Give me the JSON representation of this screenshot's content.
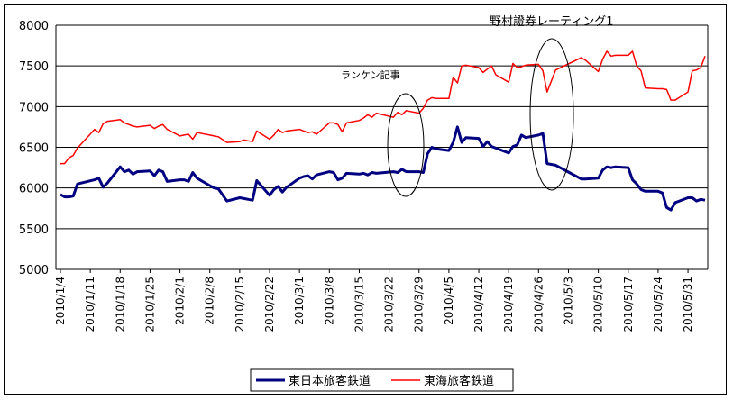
{
  "chart_data": {
    "type": "line",
    "title": "",
    "xlabel": "",
    "ylabel": "",
    "ylim": [
      5000,
      8000
    ],
    "y_ticks": [
      5000,
      5500,
      6000,
      6500,
      7000,
      7500,
      8000
    ],
    "grid": "horizontal",
    "legend_position": "bottom",
    "x_ticks": [
      "2010/1/4",
      "2010/1/11",
      "2010/1/18",
      "2010/1/25",
      "2010/2/1",
      "2010/2/8",
      "2010/2/15",
      "2010/2/22",
      "2010/3/1",
      "2010/3/8",
      "2010/3/15",
      "2010/3/22",
      "2010/3/29",
      "2010/4/5",
      "2010/4/12",
      "2010/4/19",
      "2010/4/26",
      "2010/5/3",
      "2010/5/10",
      "2010/5/17",
      "2010/5/24",
      "2010/5/31"
    ],
    "annotations": [
      {
        "text": "ランケン記事",
        "x": "2010/3/26",
        "y": 7780
      },
      {
        "text": "野村證券レーティング1",
        "x": "2010/4/28",
        "y": 7950
      }
    ],
    "series": [
      {
        "name": "東日本旅客鉄道",
        "color": "#000080",
        "x": [
          "2010/1/4",
          "2010/1/5",
          "2010/1/6",
          "2010/1/7",
          "2010/1/8",
          "2010/1/12",
          "2010/1/13",
          "2010/1/14",
          "2010/1/15",
          "2010/1/18",
          "2010/1/19",
          "2010/1/20",
          "2010/1/21",
          "2010/1/22",
          "2010/1/25",
          "2010/1/26",
          "2010/1/27",
          "2010/1/28",
          "2010/1/29",
          "2010/2/1",
          "2010/2/2",
          "2010/2/3",
          "2010/2/4",
          "2010/2/5",
          "2010/2/8",
          "2010/2/9",
          "2010/2/10",
          "2010/2/12",
          "2010/2/15",
          "2010/2/16",
          "2010/2/17",
          "2010/2/18",
          "2010/2/19",
          "2010/2/22",
          "2010/2/23",
          "2010/2/24",
          "2010/2/25",
          "2010/2/26",
          "2010/3/1",
          "2010/3/2",
          "2010/3/3",
          "2010/3/4",
          "2010/3/5",
          "2010/3/8",
          "2010/3/9",
          "2010/3/10",
          "2010/3/11",
          "2010/3/12",
          "2010/3/15",
          "2010/3/16",
          "2010/3/17",
          "2010/3/18",
          "2010/3/19",
          "2010/3/23",
          "2010/3/24",
          "2010/3/25",
          "2010/3/26",
          "2010/3/29",
          "2010/3/30",
          "2010/3/31",
          "2010/4/1",
          "2010/4/2",
          "2010/4/5",
          "2010/4/6",
          "2010/4/7",
          "2010/4/8",
          "2010/4/9",
          "2010/4/12",
          "2010/4/13",
          "2010/4/14",
          "2010/4/15",
          "2010/4/16",
          "2010/4/19",
          "2010/4/20",
          "2010/4/21",
          "2010/4/22",
          "2010/4/23",
          "2010/4/26",
          "2010/4/27",
          "2010/4/28",
          "2010/4/30",
          "2010/5/6",
          "2010/5/7",
          "2010/5/10",
          "2010/5/11",
          "2010/5/12",
          "2010/5/13",
          "2010/5/14",
          "2010/5/17",
          "2010/5/18",
          "2010/5/19",
          "2010/5/20",
          "2010/5/21",
          "2010/5/24",
          "2010/5/25",
          "2010/5/26",
          "2010/5/27",
          "2010/5/28",
          "2010/5/31",
          "2010/6/1",
          "2010/6/2",
          "2010/6/3",
          "2010/6/4"
        ],
        "values": [
          5920,
          5890,
          5890,
          5900,
          6050,
          6100,
          6120,
          6010,
          6060,
          6260,
          6200,
          6220,
          6170,
          6200,
          6210,
          6150,
          6220,
          6200,
          6080,
          6100,
          6100,
          6080,
          6190,
          6120,
          6030,
          6000,
          5990,
          5840,
          5880,
          5870,
          5860,
          5850,
          6090,
          5910,
          5980,
          6020,
          5950,
          6010,
          6120,
          6140,
          6150,
          6110,
          6160,
          6200,
          6190,
          6100,
          6120,
          6180,
          6170,
          6180,
          6160,
          6190,
          6180,
          6200,
          6190,
          6230,
          6200,
          6200,
          6190,
          6420,
          6500,
          6480,
          6460,
          6560,
          6750,
          6560,
          6620,
          6610,
          6510,
          6570,
          6510,
          6490,
          6430,
          6510,
          6530,
          6650,
          6620,
          6650,
          6670,
          6300,
          6280,
          6110,
          6110,
          6120,
          6220,
          6260,
          6250,
          6260,
          6250,
          6100,
          6050,
          5980,
          5960,
          5960,
          5940,
          5760,
          5730,
          5820,
          5880,
          5880,
          5840,
          5860,
          5850
        ]
      },
      {
        "name": "東海旅客鉄道",
        "color": "#ff0000",
        "x": [
          "2010/1/4",
          "2010/1/5",
          "2010/1/6",
          "2010/1/7",
          "2010/1/8",
          "2010/1/12",
          "2010/1/13",
          "2010/1/14",
          "2010/1/15",
          "2010/1/18",
          "2010/1/19",
          "2010/1/20",
          "2010/1/21",
          "2010/1/22",
          "2010/1/25",
          "2010/1/26",
          "2010/1/27",
          "2010/1/28",
          "2010/1/29",
          "2010/2/1",
          "2010/2/2",
          "2010/2/3",
          "2010/2/4",
          "2010/2/5",
          "2010/2/8",
          "2010/2/9",
          "2010/2/10",
          "2010/2/12",
          "2010/2/15",
          "2010/2/16",
          "2010/2/17",
          "2010/2/18",
          "2010/2/19",
          "2010/2/22",
          "2010/2/23",
          "2010/2/24",
          "2010/2/25",
          "2010/2/26",
          "2010/3/1",
          "2010/3/2",
          "2010/3/3",
          "2010/3/4",
          "2010/3/5",
          "2010/3/8",
          "2010/3/9",
          "2010/3/10",
          "2010/3/11",
          "2010/3/12",
          "2010/3/15",
          "2010/3/16",
          "2010/3/17",
          "2010/3/18",
          "2010/3/19",
          "2010/3/23",
          "2010/3/24",
          "2010/3/25",
          "2010/3/26",
          "2010/3/29",
          "2010/3/30",
          "2010/3/31",
          "2010/4/1",
          "2010/4/2",
          "2010/4/5",
          "2010/4/6",
          "2010/4/7",
          "2010/4/8",
          "2010/4/9",
          "2010/4/12",
          "2010/4/13",
          "2010/4/14",
          "2010/4/15",
          "2010/4/16",
          "2010/4/19",
          "2010/4/20",
          "2010/4/21",
          "2010/4/22",
          "2010/4/23",
          "2010/4/26",
          "2010/4/27",
          "2010/4/28",
          "2010/4/30",
          "2010/5/6",
          "2010/5/7",
          "2010/5/10",
          "2010/5/11",
          "2010/5/12",
          "2010/5/13",
          "2010/5/14",
          "2010/5/17",
          "2010/5/18",
          "2010/5/19",
          "2010/5/20",
          "2010/5/21",
          "2010/5/24",
          "2010/5/25",
          "2010/5/26",
          "2010/5/27",
          "2010/5/28",
          "2010/5/31",
          "2010/6/1",
          "2010/6/2",
          "2010/6/3",
          "2010/6/4"
        ],
        "values": [
          6300,
          6300,
          6370,
          6400,
          6490,
          6720,
          6680,
          6790,
          6820,
          6840,
          6800,
          6780,
          6760,
          6750,
          6770,
          6730,
          6760,
          6780,
          6720,
          6640,
          6650,
          6660,
          6600,
          6680,
          6650,
          6640,
          6630,
          6560,
          6570,
          6590,
          6580,
          6570,
          6700,
          6600,
          6650,
          6720,
          6680,
          6700,
          6720,
          6700,
          6680,
          6690,
          6660,
          6800,
          6800,
          6780,
          6690,
          6800,
          6830,
          6860,
          6900,
          6870,
          6920,
          6870,
          6930,
          6900,
          6950,
          6920,
          6980,
          7080,
          7110,
          7100,
          7100,
          7360,
          7290,
          7500,
          7510,
          7480,
          7420,
          7460,
          7500,
          7390,
          7300,
          7530,
          7480,
          7490,
          7510,
          7520,
          7440,
          7180,
          7450,
          7600,
          7570,
          7430,
          7580,
          7680,
          7620,
          7630,
          7630,
          7680,
          7500,
          7440,
          7230,
          7220,
          7220,
          7210,
          7080,
          7080,
          7180,
          7440,
          7450,
          7480,
          7620
        ]
      }
    ]
  }
}
